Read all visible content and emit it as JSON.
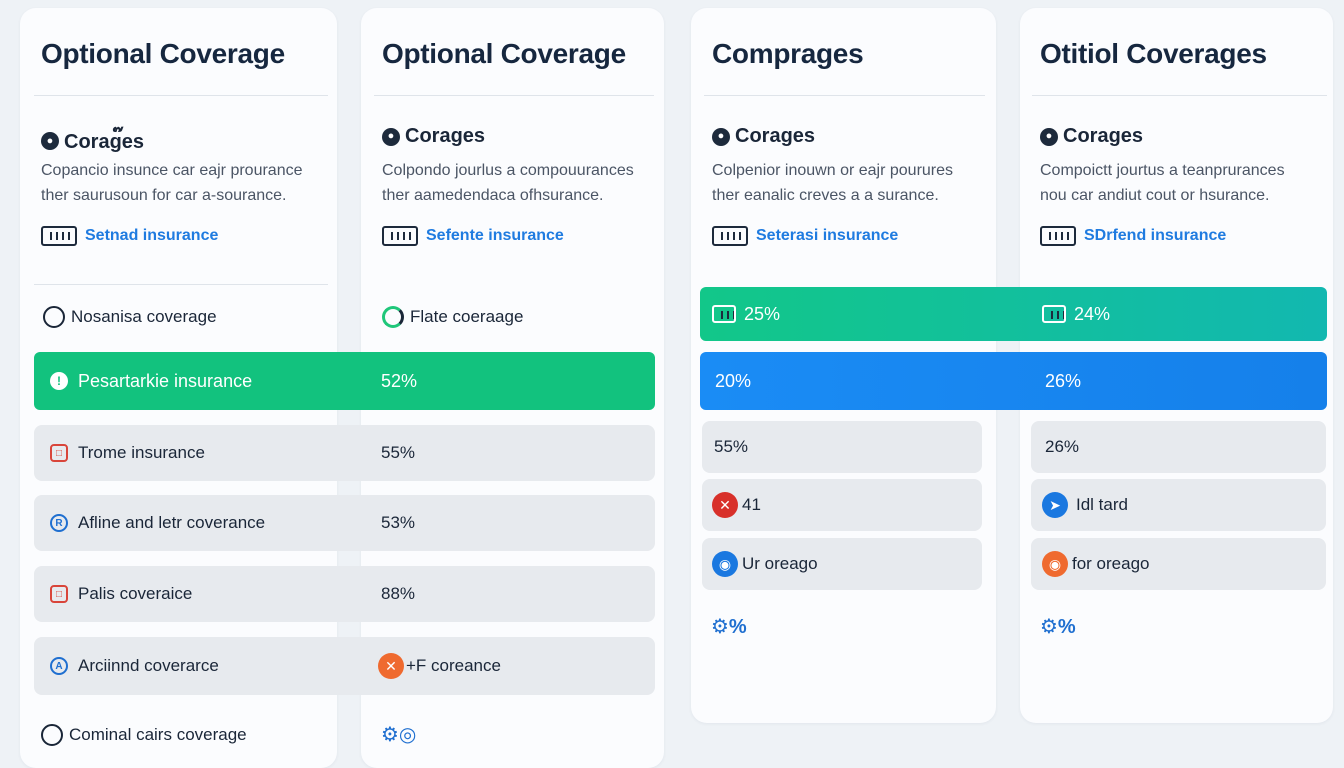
{
  "columns": [
    {
      "title": "Optional Coverage",
      "subtitle": "Corag๊es",
      "description_lines": [
        "Copancio insunce car eajr prourance",
        "ther saurusoun for car a-sourance."
      ],
      "link": "Setnad insurance"
    },
    {
      "title": "Optional Coverage",
      "subtitle": "Corages",
      "description_lines": [
        "Colpondo jourlus a compouurances",
        "ther aamedendaca ofhsurance."
      ],
      "link": "Sefente insurance"
    },
    {
      "title": "Comprages",
      "subtitle": "Corages",
      "description_lines": [
        "Colpenior inouwn or eajr pourures",
        "ther eanalic creves a a surance."
      ],
      "link": "Seterasi insurance"
    },
    {
      "title": "Otitiol Coverages",
      "subtitle": "Corages",
      "description_lines": [
        "Compoictt jourtus a teanprurances",
        "nou car andiut cout or hsurance."
      ],
      "link": "SDrfend insurance"
    }
  ],
  "left_table": {
    "radio_top": [
      {
        "label": "Nosanisa coverage",
        "selected": false
      },
      {
        "label": "Flate coeraage",
        "selected": true
      }
    ],
    "highlight": {
      "label": "Pesartarkie insurance",
      "value": "52%"
    },
    "rows": [
      {
        "label": "Trome insurance",
        "value": "55%",
        "icon": "calendar-icon"
      },
      {
        "label": "Afline and letr coverance",
        "value": "53%",
        "icon": "shield-icon"
      },
      {
        "label": "Palis coveraice",
        "value": "88%",
        "icon": "calendar-icon"
      },
      {
        "label": "Arciinnd coverarce",
        "value": "+F coreance",
        "icon": "shield-icon"
      }
    ],
    "radio_bottom": {
      "label": "Cominal cairs coverage",
      "selected": false
    }
  },
  "right_table": {
    "teal_band": {
      "col3": "25%",
      "col4": "24%"
    },
    "blue_band": {
      "col3": "20%",
      "col4": "26%"
    },
    "rows_col3": [
      {
        "label": "55%",
        "icon": ""
      },
      {
        "label": "41",
        "icon": "close-icon"
      },
      {
        "label": "Ur oreago",
        "icon": "globe-icon"
      }
    ],
    "rows_col4": [
      {
        "label": "26%",
        "icon": ""
      },
      {
        "label": "Idl tard",
        "icon": "globe-icon"
      },
      {
        "label": "for oreago",
        "icon": "globe-icon"
      }
    ]
  },
  "colors": {
    "green": "#12c27e",
    "blue": "#1a8cf5",
    "link": "#1f7be0",
    "row_bg": "#e7eaee"
  }
}
